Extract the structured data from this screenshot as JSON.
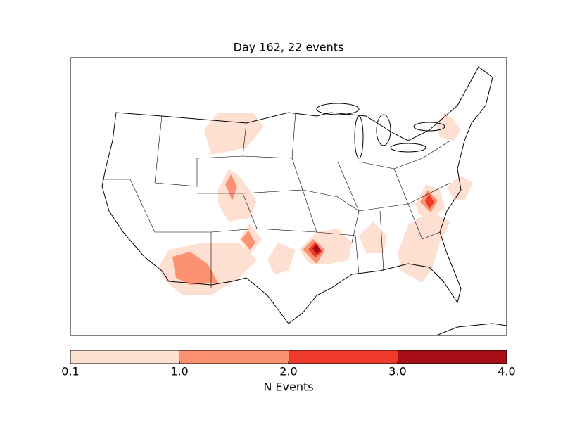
{
  "map": {
    "title": "Day 162, 22 events",
    "colorbar": {
      "label": "N Events",
      "ticks": [
        {
          "value": 0.1,
          "label": "0.1"
        },
        {
          "value": 1,
          "label": "1.0"
        },
        {
          "value": 2,
          "label": "2.0"
        },
        {
          "value": 3,
          "label": "3.0"
        },
        {
          "value": 4,
          "label": "4.0"
        }
      ],
      "colors": [
        "#fee0d2",
        "#fc9272",
        "#ef3b2c",
        "#a50f15"
      ]
    }
  }
}
